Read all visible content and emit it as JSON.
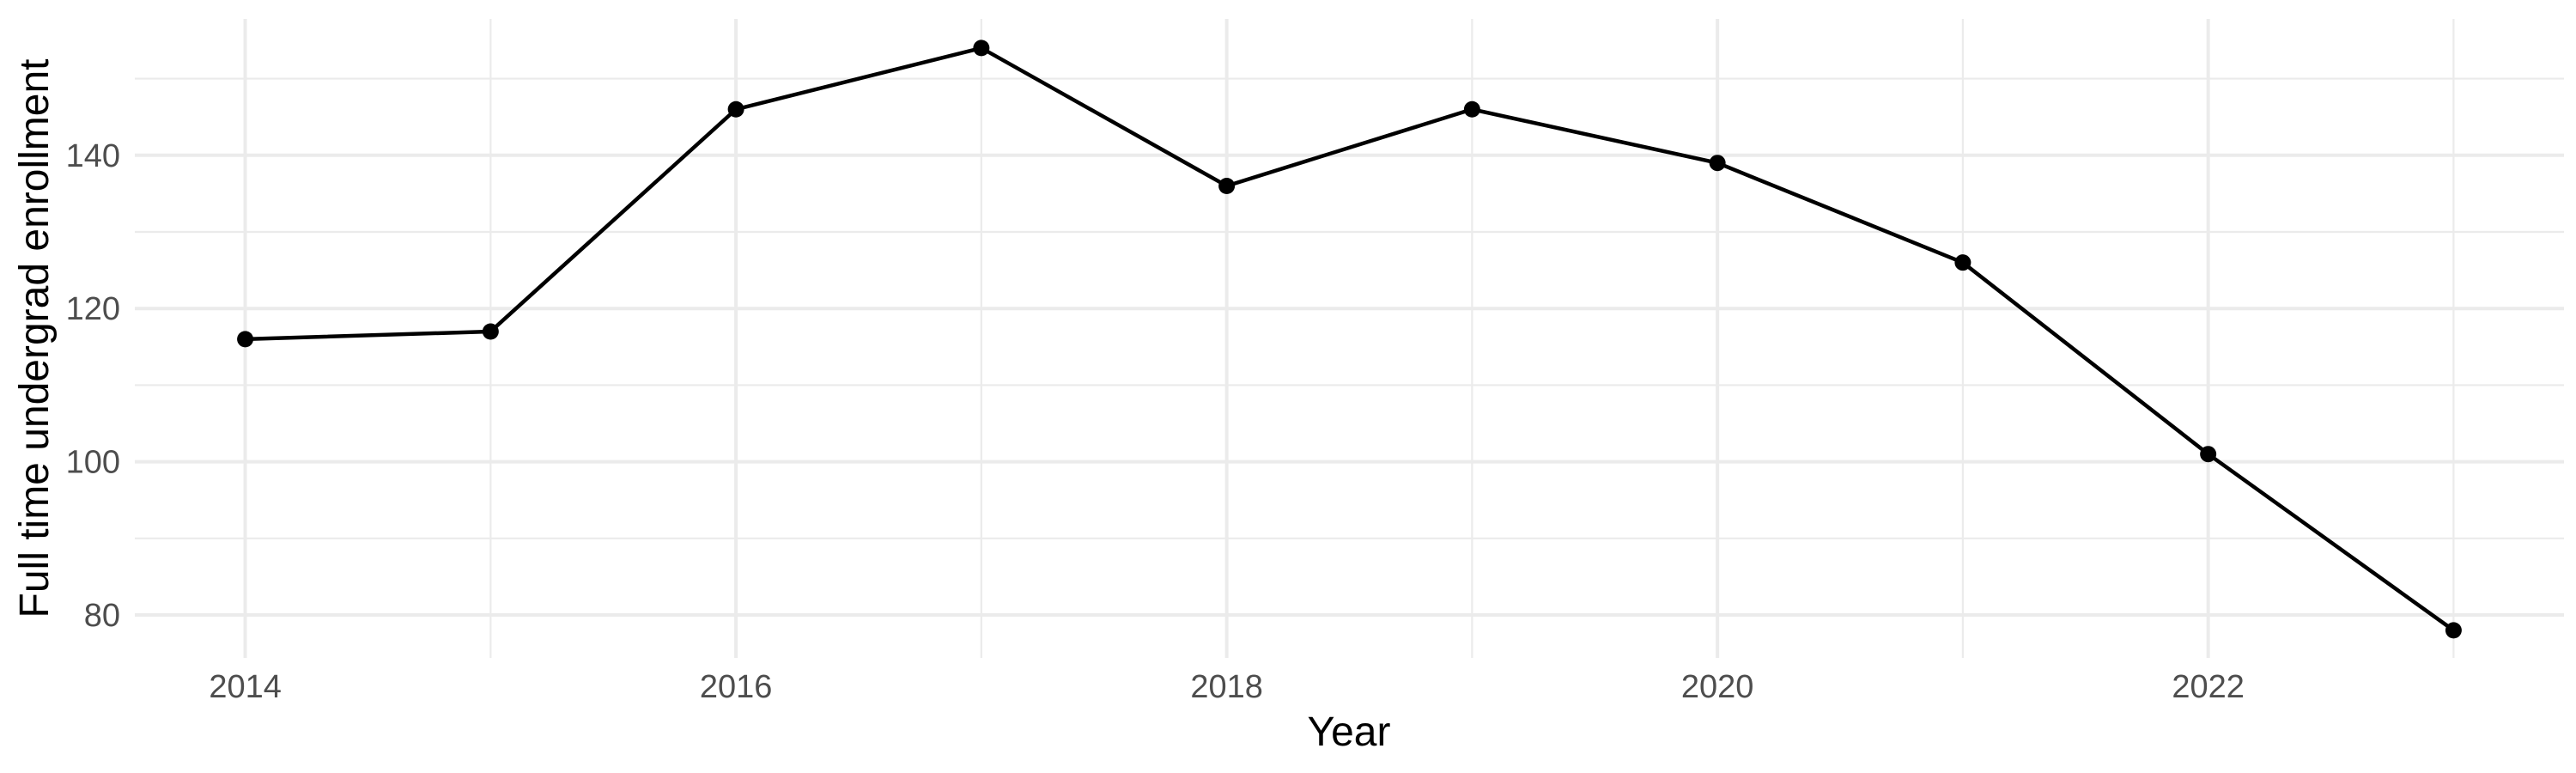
{
  "chart_data": {
    "type": "line",
    "title": "",
    "xlabel": "Year",
    "ylabel": "Full time undergrad enrollment",
    "x": [
      2014,
      2015,
      2016,
      2017,
      2018,
      2019,
      2020,
      2021,
      2022,
      2023
    ],
    "values": [
      116,
      117,
      146,
      154,
      136,
      146,
      139,
      126,
      101,
      78
    ],
    "series_name": "Full time undergrad enrollment",
    "xlim": [
      2013.55,
      2023.45
    ],
    "ylim": [
      74.4,
      157.8
    ],
    "x_major_ticks": [
      2014,
      2016,
      2018,
      2020,
      2022
    ],
    "x_major_tick_labels": [
      "2014",
      "2016",
      "2018",
      "2020",
      "2022"
    ],
    "x_minor_ticks": [
      2015,
      2017,
      2019,
      2021,
      2023
    ],
    "y_major_ticks": [
      80,
      100,
      120,
      140
    ],
    "y_major_tick_labels": [
      "80",
      "100",
      "120",
      "140"
    ],
    "y_minor_ticks": [
      90,
      110,
      130,
      150
    ],
    "grid": "major+minor",
    "legend_position": "none",
    "colors": {
      "background": "#FFFFFF",
      "grid_major": "#EBEBEB",
      "grid_minor": "#EBEBEB",
      "line": "#000000",
      "point": "#000000",
      "tick_text": "#4D4D4D",
      "axis_title_text": "#000000"
    }
  }
}
